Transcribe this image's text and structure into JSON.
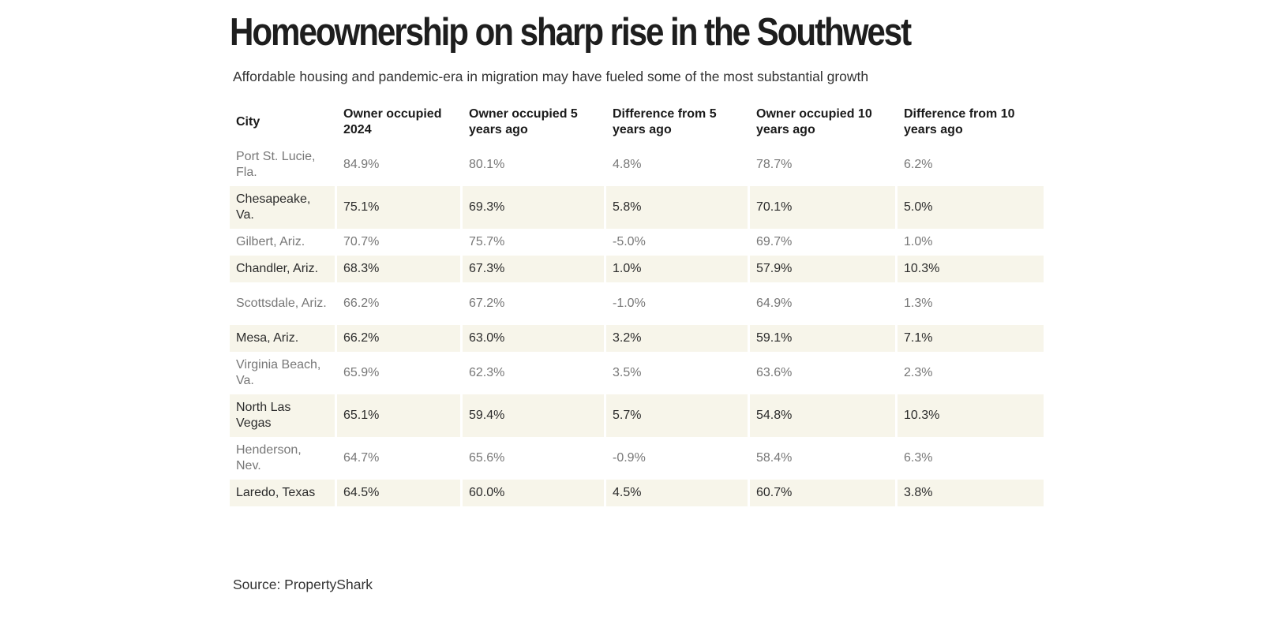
{
  "title": "Homeownership on sharp rise in the Southwest",
  "subtitle": "Affordable housing and pandemic-era in migration may have fueled some of the most substantial growth",
  "source": "Source: PropertyShark",
  "colors": {
    "stripe_background": "#f7f5ea",
    "text_dark": "#2b2b2b",
    "text_muted": "#777777"
  },
  "chart_data": {
    "type": "table",
    "columns": [
      "City",
      "Owner occupied 2024",
      "Owner occupied 5 years ago",
      "Difference from 5 years ago",
      "Owner occupied 10 years ago",
      "Difference from 10 years ago"
    ],
    "rows": [
      [
        "Port St. Lucie, Fla.",
        "84.9%",
        "80.1%",
        "4.8%",
        "78.7%",
        "6.2%"
      ],
      [
        "Chesapeake, Va.",
        "75.1%",
        "69.3%",
        "5.8%",
        "70.1%",
        "5.0%"
      ],
      [
        "Gilbert, Ariz.",
        "70.7%",
        "75.7%",
        "-5.0%",
        "69.7%",
        "1.0%"
      ],
      [
        "Chandler, Ariz.",
        "68.3%",
        "67.3%",
        "1.0%",
        "57.9%",
        "10.3%"
      ],
      [
        "Scottsdale, Ariz.",
        "66.2%",
        "67.2%",
        "-1.0%",
        "64.9%",
        "1.3%"
      ],
      [
        "Mesa, Ariz.",
        "66.2%",
        "63.0%",
        "3.2%",
        "59.1%",
        "7.1%"
      ],
      [
        "Virginia Beach, Va.",
        "65.9%",
        "62.3%",
        "3.5%",
        "63.6%",
        "2.3%"
      ],
      [
        "North Las Vegas",
        "65.1%",
        "59.4%",
        "5.7%",
        "54.8%",
        "10.3%"
      ],
      [
        "Henderson, Nev.",
        "64.7%",
        "65.6%",
        "-0.9%",
        "58.4%",
        "6.3%"
      ],
      [
        "Laredo, Texas",
        "64.5%",
        "60.0%",
        "4.5%",
        "60.7%",
        "3.8%"
      ]
    ]
  }
}
